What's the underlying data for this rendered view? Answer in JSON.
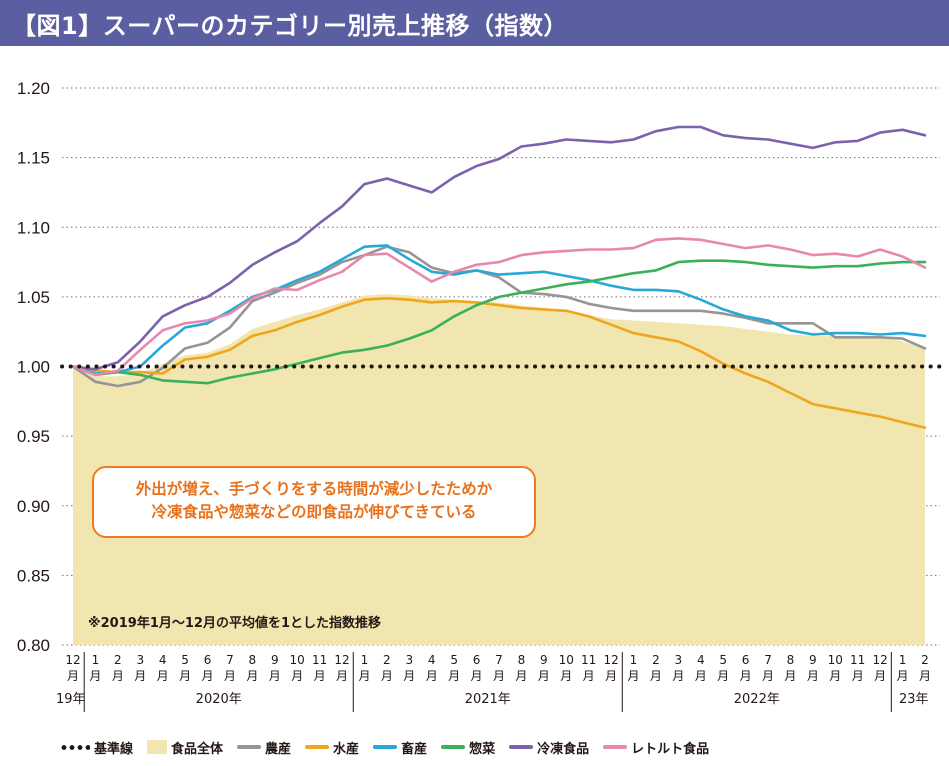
{
  "title": "【図1】スーパーのカテゴリー別売上推移（指数）",
  "annotation": {
    "line1": "外出が増え、手づくりをする時間が減少したためか",
    "line2": "冷凍食品や惣菜などの即食品が伸びてきている"
  },
  "note": "※2019年1月〜12月の平均値を1とした指数推移",
  "colors": {
    "title_bg": "#5b5fa2",
    "baseline": "#231815",
    "total_fill": "#f2e6b0",
    "agri": "#959595",
    "fish": "#f0a51e",
    "meat": "#26a9d7",
    "deli": "#3ab05a",
    "frozen": "#7c62ad",
    "retort": "#e888ae",
    "annotation": "#ee7b22"
  },
  "legend": [
    {
      "key": "baseline",
      "label": "基準線",
      "style": "dots"
    },
    {
      "key": "total",
      "label": "食品全体",
      "style": "box"
    },
    {
      "key": "agri",
      "label": "農産",
      "style": "line"
    },
    {
      "key": "fish",
      "label": "水産",
      "style": "line"
    },
    {
      "key": "meat",
      "label": "畜産",
      "style": "line"
    },
    {
      "key": "deli",
      "label": "惣菜",
      "style": "line"
    },
    {
      "key": "frozen",
      "label": "冷凍食品",
      "style": "line"
    },
    {
      "key": "retort",
      "label": "レトルト食品",
      "style": "line"
    }
  ],
  "chart_data": {
    "type": "line",
    "ylim": [
      0.8,
      1.2
    ],
    "yticks": [
      "0.80",
      "0.85",
      "0.90",
      "0.95",
      "1.00",
      "1.05",
      "1.10",
      "1.15",
      "1.20"
    ],
    "grid": "dotted horizontal",
    "x_month_labels": [
      "12\n月",
      "1\n月",
      "2\n月",
      "3\n月",
      "4\n月",
      "5\n月",
      "6\n月",
      "7\n月",
      "8\n月",
      "9\n月",
      "10\n月",
      "11\n月",
      "12\n月",
      "1\n月",
      "2\n月",
      "3\n月",
      "4\n月",
      "5\n月",
      "6\n月",
      "7\n月",
      "8\n月",
      "9\n月",
      "10\n月",
      "11\n月",
      "12\n月",
      "1\n月",
      "2\n月",
      "3\n月",
      "4\n月",
      "5\n月",
      "6\n月",
      "7\n月",
      "8\n月",
      "9\n月",
      "10\n月",
      "11\n月",
      "12\n月",
      "1\n月",
      "2\n月"
    ],
    "x_year_labels": [
      "19年",
      "2020年",
      "2021年",
      "2022年",
      "23年"
    ],
    "baseline": 1.0,
    "series": [
      {
        "key": "total",
        "name": "食品全体",
        "kind": "area",
        "values": [
          1.0,
          0.993,
          0.993,
          0.995,
          1.002,
          1.008,
          1.01,
          1.016,
          1.027,
          1.032,
          1.037,
          1.041,
          1.046,
          1.051,
          1.052,
          1.051,
          1.049,
          1.048,
          1.047,
          1.046,
          1.044,
          1.042,
          1.04,
          1.037,
          1.034,
          1.033,
          1.032,
          1.031,
          1.03,
          1.029,
          1.027,
          1.025,
          1.023,
          1.022,
          1.022,
          1.022,
          1.021,
          1.018,
          1.013
        ]
      },
      {
        "key": "agri",
        "name": "農産",
        "values": [
          1.0,
          0.989,
          0.986,
          0.989,
          0.999,
          1.013,
          1.017,
          1.028,
          1.047,
          1.053,
          1.06,
          1.066,
          1.075,
          1.08,
          1.086,
          1.082,
          1.071,
          1.067,
          1.069,
          1.064,
          1.053,
          1.052,
          1.05,
          1.045,
          1.042,
          1.04,
          1.04,
          1.04,
          1.04,
          1.038,
          1.035,
          1.031,
          1.031,
          1.031,
          1.021,
          1.021,
          1.021,
          1.02,
          1.013
        ]
      },
      {
        "key": "fish",
        "name": "水産",
        "values": [
          1.0,
          0.997,
          0.996,
          0.996,
          0.995,
          1.005,
          1.007,
          1.012,
          1.022,
          1.026,
          1.032,
          1.037,
          1.043,
          1.048,
          1.049,
          1.048,
          1.046,
          1.047,
          1.046,
          1.044,
          1.042,
          1.041,
          1.04,
          1.036,
          1.03,
          1.024,
          1.021,
          1.018,
          1.011,
          1.002,
          0.995,
          0.989,
          0.981,
          0.973,
          0.97,
          0.967,
          0.964,
          0.96,
          0.956
        ]
      },
      {
        "key": "meat",
        "name": "畜産",
        "values": [
          1.0,
          0.995,
          0.996,
          1.0,
          1.015,
          1.028,
          1.031,
          1.04,
          1.05,
          1.055,
          1.062,
          1.068,
          1.077,
          1.086,
          1.087,
          1.077,
          1.068,
          1.066,
          1.069,
          1.066,
          1.067,
          1.068,
          1.065,
          1.062,
          1.058,
          1.055,
          1.055,
          1.054,
          1.048,
          1.041,
          1.036,
          1.033,
          1.026,
          1.023,
          1.024,
          1.024,
          1.023,
          1.024,
          1.022
        ]
      },
      {
        "key": "deli",
        "name": "惣菜",
        "values": [
          1.0,
          0.994,
          0.996,
          0.994,
          0.99,
          0.989,
          0.988,
          0.992,
          0.995,
          0.998,
          1.002,
          1.006,
          1.01,
          1.012,
          1.015,
          1.02,
          1.026,
          1.036,
          1.044,
          1.05,
          1.053,
          1.056,
          1.059,
          1.061,
          1.064,
          1.067,
          1.069,
          1.075,
          1.076,
          1.076,
          1.075,
          1.073,
          1.072,
          1.071,
          1.072,
          1.072,
          1.074,
          1.075,
          1.075
        ]
      },
      {
        "key": "frozen",
        "name": "冷凍食品",
        "values": [
          1.0,
          0.998,
          1.003,
          1.018,
          1.036,
          1.044,
          1.05,
          1.06,
          1.073,
          1.082,
          1.09,
          1.103,
          1.115,
          1.131,
          1.135,
          1.13,
          1.125,
          1.136,
          1.144,
          1.149,
          1.158,
          1.16,
          1.163,
          1.162,
          1.161,
          1.163,
          1.169,
          1.172,
          1.172,
          1.166,
          1.164,
          1.163,
          1.16,
          1.157,
          1.161,
          1.162,
          1.168,
          1.17,
          1.166
        ]
      },
      {
        "key": "retort",
        "name": "レトルト食品",
        "values": [
          1.0,
          0.994,
          0.997,
          1.012,
          1.026,
          1.031,
          1.033,
          1.038,
          1.049,
          1.056,
          1.055,
          1.062,
          1.068,
          1.08,
          1.081,
          1.071,
          1.061,
          1.068,
          1.073,
          1.075,
          1.08,
          1.082,
          1.083,
          1.084,
          1.084,
          1.085,
          1.091,
          1.092,
          1.091,
          1.088,
          1.085,
          1.087,
          1.084,
          1.08,
          1.081,
          1.079,
          1.084,
          1.079,
          1.071
        ]
      }
    ]
  }
}
